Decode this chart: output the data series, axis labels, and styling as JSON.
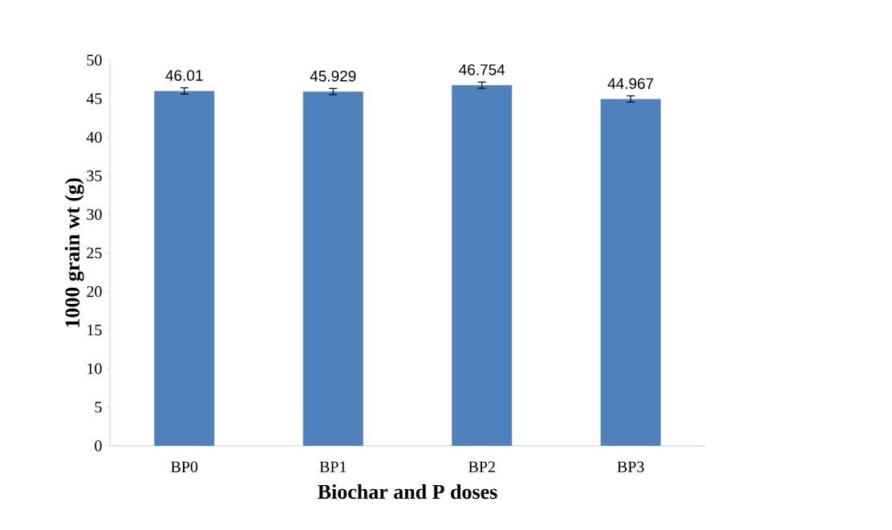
{
  "chart_data": {
    "type": "bar",
    "xlabel": "Biochar and P doses",
    "ylabel": "1000 grain wt (g)",
    "categories": [
      "BP0",
      "BP1",
      "BP2",
      "BP3"
    ],
    "values": [
      46.01,
      45.929,
      46.754,
      44.967
    ],
    "errors": [
      0.4,
      0.4,
      0.4,
      0.4
    ],
    "color": "#4f81bd",
    "ylim": [
      0,
      50
    ],
    "yticks": [
      0,
      5,
      10,
      15,
      20,
      25,
      30,
      35,
      40,
      45,
      50
    ],
    "data_labels": true
  }
}
